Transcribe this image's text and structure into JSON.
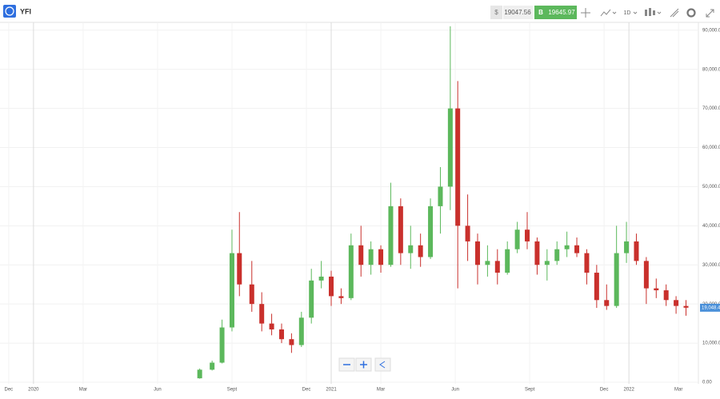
{
  "toolbar": {
    "symbol": "YFI",
    "sell_sign": "$",
    "sell": 19047.56,
    "buy_sign": "B",
    "buy": 19645.97,
    "interval": "1D"
  },
  "chart_data": {
    "type": "candlestick",
    "x": [
      6.7,
      7.2,
      7.6,
      8.0,
      8.3,
      8.8,
      9.2,
      9.6,
      10.0,
      10.4,
      10.8,
      11.2,
      11.6,
      12.0,
      12.4,
      12.8,
      13.2,
      13.6,
      14.0,
      14.4,
      14.8,
      15.2,
      15.6,
      16.0,
      16.4,
      16.8,
      17.1,
      17.5,
      17.9,
      18.3,
      18.7,
      19.1,
      19.5,
      19.9,
      20.3,
      20.7,
      21.1,
      21.5,
      21.9,
      22.3,
      22.7,
      23.1,
      23.5,
      23.9,
      24.3,
      24.7,
      25.1,
      25.5,
      25.9,
      26.3
    ],
    "open": [
      1000,
      3200,
      5000,
      14000,
      33000,
      25000,
      20000,
      15000,
      13500,
      11000,
      9500,
      16500,
      26000,
      27000,
      22000,
      21500,
      35000,
      30000,
      34000,
      30000,
      45000,
      33000,
      35000,
      32000,
      45000,
      50000,
      70000,
      40000,
      36000,
      30000,
      31000,
      28000,
      34000,
      39000,
      36000,
      30000,
      31000,
      34000,
      35000,
      33000,
      28000,
      21000,
      19500,
      33000,
      36000,
      31000,
      24000,
      23500,
      21000,
      19500
    ],
    "high": [
      3500,
      5500,
      16000,
      39000,
      43500,
      31000,
      23000,
      17500,
      15000,
      12500,
      18000,
      29000,
      31000,
      28500,
      24000,
      38000,
      40000,
      36000,
      35000,
      51000,
      47000,
      40000,
      38000,
      47000,
      55000,
      91000,
      77000,
      48000,
      38000,
      35000,
      34000,
      36000,
      41000,
      43500,
      37000,
      34000,
      36000,
      38500,
      37000,
      34000,
      30000,
      25000,
      40000,
      41000,
      38000,
      32000,
      26500,
      25000,
      22000,
      21000
    ],
    "low": [
      900,
      3000,
      4800,
      13000,
      22000,
      18000,
      13000,
      12000,
      10000,
      7500,
      9000,
      15000,
      24000,
      19500,
      20000,
      21000,
      27000,
      27500,
      28000,
      29500,
      30000,
      29000,
      29500,
      31500,
      38000,
      44000,
      24000,
      31000,
      25000,
      27000,
      25000,
      27500,
      33000,
      34000,
      27500,
      26000,
      30000,
      32000,
      32000,
      25000,
      19000,
      18500,
      19000,
      30500,
      30000,
      20000,
      21500,
      19500,
      17500,
      17000
    ],
    "close": [
      3200,
      5000,
      14000,
      33000,
      25000,
      20000,
      15000,
      13500,
      11000,
      9500,
      16500,
      26000,
      27000,
      22000,
      21500,
      35000,
      30000,
      34000,
      30000,
      45000,
      33000,
      35000,
      32000,
      45000,
      50000,
      70000,
      40000,
      36000,
      30000,
      31000,
      28000,
      34000,
      39000,
      36000,
      30000,
      31000,
      34000,
      35000,
      33000,
      28000,
      21000,
      19500,
      33000,
      36000,
      31000,
      24000,
      23500,
      21000,
      19500,
      19048
    ],
    "last_price_label": "19,048.4",
    "up_color": "#5cb85c",
    "down_color": "#c9302c",
    "xlim": [
      -1.35,
      26.8
    ],
    "xticks": [
      {
        "value": -1,
        "label": "Dec"
      },
      {
        "value": 0,
        "label": "2020"
      },
      {
        "value": 2,
        "label": "Mar"
      },
      {
        "value": 5,
        "label": "Jun"
      },
      {
        "value": 8,
        "label": "Sept"
      },
      {
        "value": 11,
        "label": "Dec"
      },
      {
        "value": 12,
        "label": "2021"
      },
      {
        "value": 14,
        "label": "Mar"
      },
      {
        "value": 17,
        "label": "Jun"
      },
      {
        "value": 20,
        "label": "Sept"
      },
      {
        "value": 23,
        "label": "Dec"
      },
      {
        "value": 24,
        "label": "2022"
      },
      {
        "value": 26,
        "label": "Mar"
      }
    ],
    "ylim": [
      0,
      92000
    ],
    "yticks": [
      {
        "value": 0,
        "label": "0.00"
      },
      {
        "value": 10000,
        "label": "10,000.00"
      },
      {
        "value": 20000,
        "label": "20,000.00"
      },
      {
        "value": 30000,
        "label": "30,000.00"
      },
      {
        "value": 40000,
        "label": "40,000.00"
      },
      {
        "value": 50000,
        "label": "50,000.00"
      },
      {
        "value": 60000,
        "label": "60,000.00"
      },
      {
        "value": 70000,
        "label": "70,000.00"
      },
      {
        "value": 80000,
        "label": "80,000.00"
      },
      {
        "value": 90000,
        "label": "90,000.00"
      }
    ],
    "grid": true
  }
}
